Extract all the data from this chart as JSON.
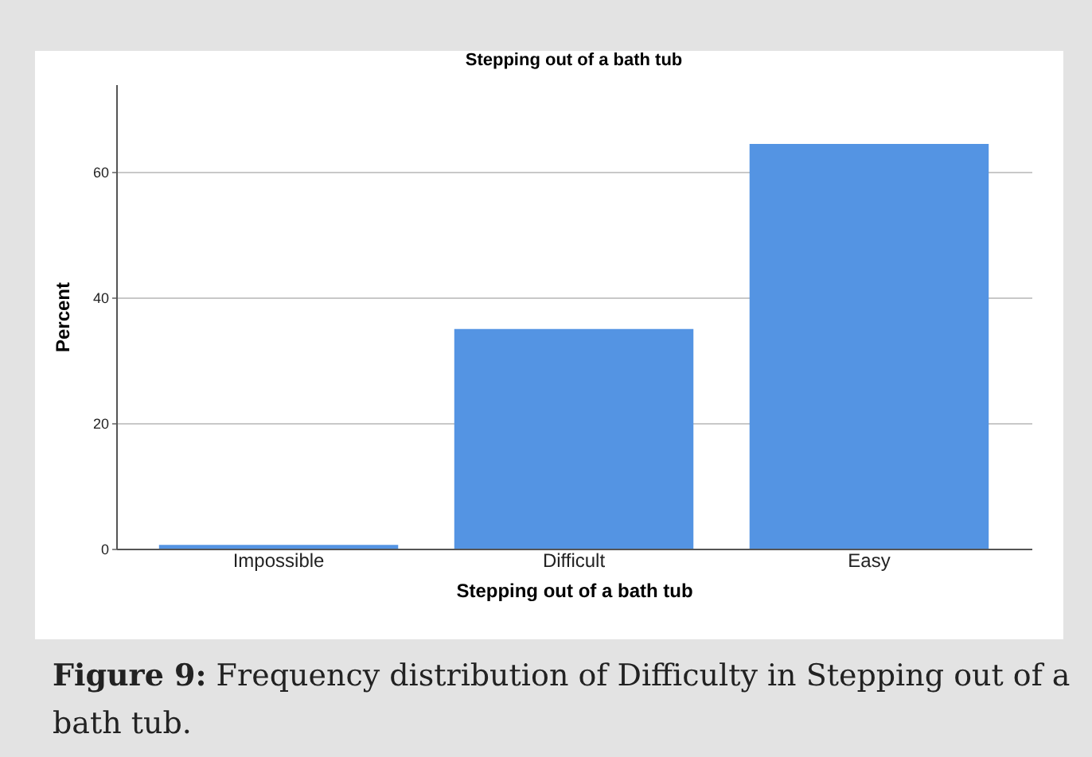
{
  "chart_data": {
    "type": "bar",
    "title": "Stepping out of a bath tub",
    "xlabel": "Stepping out of a bath tub",
    "ylabel": "Percent",
    "categories": [
      "Impossible",
      "Difficult",
      "Easy"
    ],
    "values": [
      0.6,
      35,
      64.5
    ],
    "color": "#5494e3",
    "ylim": [
      0,
      74
    ],
    "yticks": [
      0,
      20,
      40,
      60
    ],
    "grid": "y",
    "annotations": [
      "Figure 9: Frequency distribution of Difficulty in Stepping out of a bath tub."
    ]
  }
}
